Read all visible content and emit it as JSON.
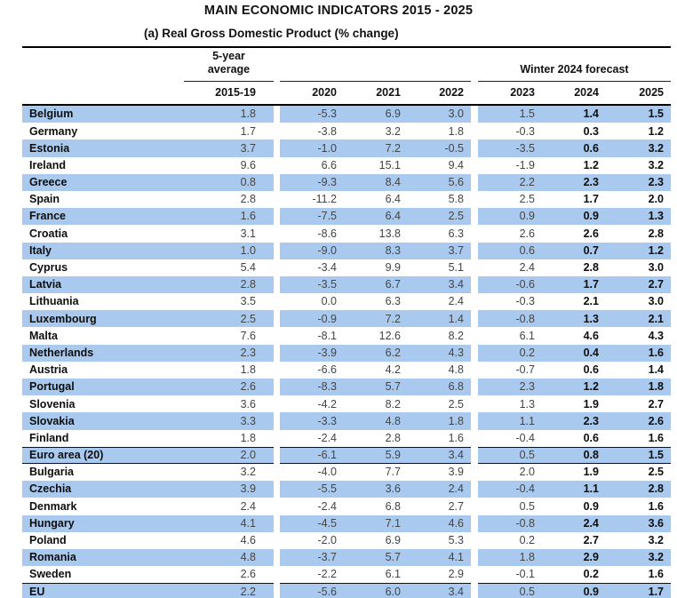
{
  "title": "MAIN ECONOMIC INDICATORS 2015 - 2025",
  "subtitle": "(a) Real Gross Domestic Product (% change)",
  "colors": {
    "row_stripe": "#a9caee",
    "border": "#000000"
  },
  "chart_data": {
    "type": "table",
    "title": "MAIN ECONOMIC INDICATORS 2015 - 2025",
    "subtitle": "(a) Real Gross Domestic Product (% change)",
    "group_headers": {
      "five_year_line1": "5-year",
      "five_year_line2": "average",
      "forecast": "Winter 2024 forecast"
    },
    "columns": [
      "2015-19",
      "2020",
      "2021",
      "2022",
      "2023",
      "2024",
      "2025"
    ],
    "rows": [
      {
        "name": "Belgium",
        "values": [
          "1.8",
          "-5.3",
          "6.9",
          "3.0",
          "1.5",
          "1.4",
          "1.5"
        ]
      },
      {
        "name": "Germany",
        "values": [
          "1.7",
          "-3.8",
          "3.2",
          "1.8",
          "-0.3",
          "0.3",
          "1.2"
        ]
      },
      {
        "name": "Estonia",
        "values": [
          "3.7",
          "-1.0",
          "7.2",
          "-0.5",
          "-3.5",
          "0.6",
          "3.2"
        ]
      },
      {
        "name": "Ireland",
        "values": [
          "9.6",
          "6.6",
          "15.1",
          "9.4",
          "-1.9",
          "1.2",
          "3.2"
        ]
      },
      {
        "name": "Greece",
        "values": [
          "0.8",
          "-9.3",
          "8.4",
          "5.6",
          "2.2",
          "2.3",
          "2.3"
        ]
      },
      {
        "name": "Spain",
        "values": [
          "2.8",
          "-11.2",
          "6.4",
          "5.8",
          "2.5",
          "1.7",
          "2.0"
        ]
      },
      {
        "name": "France",
        "values": [
          "1.6",
          "-7.5",
          "6.4",
          "2.5",
          "0.9",
          "0.9",
          "1.3"
        ]
      },
      {
        "name": "Croatia",
        "values": [
          "3.1",
          "-8.6",
          "13.8",
          "6.3",
          "2.6",
          "2.6",
          "2.8"
        ]
      },
      {
        "name": "Italy",
        "values": [
          "1.0",
          "-9.0",
          "8.3",
          "3.7",
          "0.6",
          "0.7",
          "1.2"
        ]
      },
      {
        "name": "Cyprus",
        "values": [
          "5.4",
          "-3.4",
          "9.9",
          "5.1",
          "2.4",
          "2.8",
          "3.0"
        ]
      },
      {
        "name": "Latvia",
        "values": [
          "2.8",
          "-3.5",
          "6.7",
          "3.4",
          "-0.6",
          "1.7",
          "2.7"
        ]
      },
      {
        "name": "Lithuania",
        "values": [
          "3.5",
          "0.0",
          "6.3",
          "2.4",
          "-0.3",
          "2.1",
          "3.0"
        ]
      },
      {
        "name": "Luxembourg",
        "values": [
          "2.5",
          "-0.9",
          "7.2",
          "1.4",
          "-0.8",
          "1.3",
          "2.1"
        ]
      },
      {
        "name": "Malta",
        "values": [
          "7.6",
          "-8.1",
          "12.6",
          "8.2",
          "6.1",
          "4.6",
          "4.3"
        ]
      },
      {
        "name": "Netherlands",
        "values": [
          "2.3",
          "-3.9",
          "6.2",
          "4.3",
          "0.2",
          "0.4",
          "1.6"
        ]
      },
      {
        "name": "Austria",
        "values": [
          "1.8",
          "-6.6",
          "4.2",
          "4.8",
          "-0.7",
          "0.6",
          "1.4"
        ]
      },
      {
        "name": "Portugal",
        "values": [
          "2.6",
          "-8.3",
          "5.7",
          "6.8",
          "2.3",
          "1.2",
          "1.8"
        ]
      },
      {
        "name": "Slovenia",
        "values": [
          "3.6",
          "-4.2",
          "8.2",
          "2.5",
          "1.3",
          "1.9",
          "2.7"
        ]
      },
      {
        "name": "Slovakia",
        "values": [
          "3.3",
          "-3.3",
          "4.8",
          "1.8",
          "1.1",
          "2.3",
          "2.6"
        ]
      },
      {
        "name": "Finland",
        "values": [
          "1.8",
          "-2.4",
          "2.8",
          "1.6",
          "-0.4",
          "0.6",
          "1.6"
        ]
      },
      {
        "name": "Euro area (20)",
        "values": [
          "2.0",
          "-6.1",
          "5.9",
          "3.4",
          "0.5",
          "0.8",
          "1.5"
        ],
        "bordered": "both"
      },
      {
        "name": "Bulgaria",
        "values": [
          "3.2",
          "-4.0",
          "7.7",
          "3.9",
          "2.0",
          "1.9",
          "2.5"
        ]
      },
      {
        "name": "Czechia",
        "values": [
          "3.9",
          "-5.5",
          "3.6",
          "2.4",
          "-0.4",
          "1.1",
          "2.8"
        ]
      },
      {
        "name": "Denmark",
        "values": [
          "2.4",
          "-2.4",
          "6.8",
          "2.7",
          "0.5",
          "0.9",
          "1.6"
        ]
      },
      {
        "name": "Hungary",
        "values": [
          "4.1",
          "-4.5",
          "7.1",
          "4.6",
          "-0.8",
          "2.4",
          "3.6"
        ]
      },
      {
        "name": "Poland",
        "values": [
          "4.6",
          "-2.0",
          "6.9",
          "5.3",
          "0.2",
          "2.7",
          "3.2"
        ]
      },
      {
        "name": "Romania",
        "values": [
          "4.8",
          "-3.7",
          "5.7",
          "4.1",
          "1.8",
          "2.9",
          "3.2"
        ]
      },
      {
        "name": "Sweden",
        "values": [
          "2.6",
          "-2.2",
          "6.1",
          "2.9",
          "-0.1",
          "0.2",
          "1.6"
        ]
      },
      {
        "name": "EU",
        "values": [
          "2.2",
          "-5.6",
          "6.0",
          "3.4",
          "0.5",
          "0.9",
          "1.7"
        ],
        "bordered": "top"
      }
    ]
  }
}
